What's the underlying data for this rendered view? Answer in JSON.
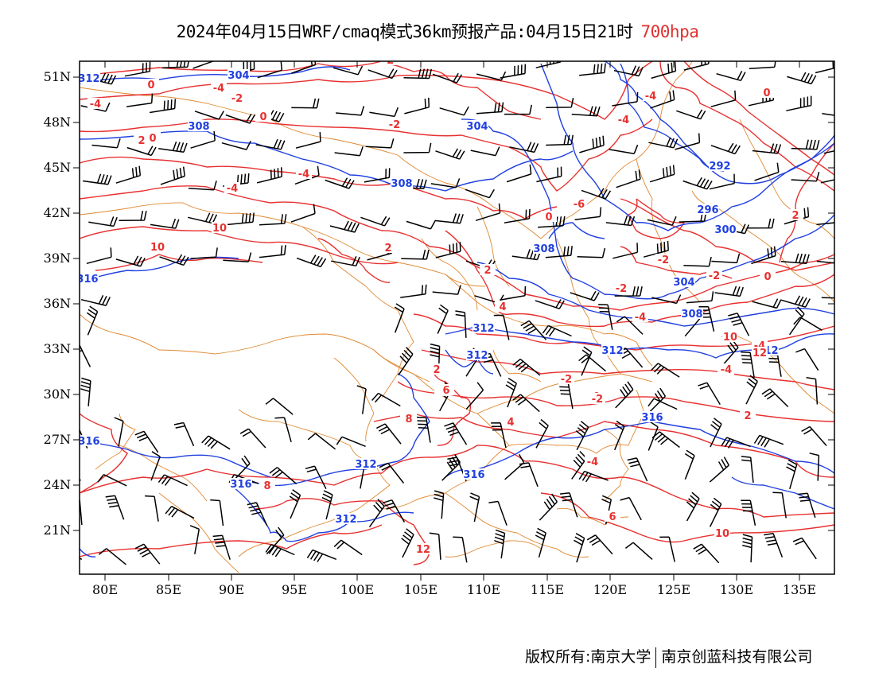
{
  "title": {
    "text": "2024年04月15日WRF/cmaq模式36km预报产品:04月15日21时",
    "level": "700hpa"
  },
  "axes": {
    "lat_labels": [
      "51N",
      "48N",
      "45N",
      "42N",
      "39N",
      "36N",
      "33N",
      "30N",
      "27N",
      "24N",
      "21N"
    ],
    "lon_labels": [
      "80E",
      "85E",
      "90E",
      "95E",
      "100E",
      "105E",
      "110E",
      "115E",
      "120E",
      "125E",
      "130E",
      "135E"
    ]
  },
  "colors": {
    "geopotential": "#2040e0",
    "temperature": "#e83030",
    "boundaries": "#e08830",
    "wind": "#000000",
    "level_label": "#e03030"
  },
  "contour_labels": {
    "geopotential": [
      "304",
      "308",
      "308",
      "304",
      "292",
      "296",
      "300",
      "308",
      "304",
      "308",
      "312",
      "312",
      "312",
      "316",
      "312",
      "316",
      "316",
      "312",
      "316",
      "312",
      "316",
      "312"
    ],
    "temperature": [
      "-2",
      "0",
      "-4",
      "-4",
      "-2",
      "0",
      "-2",
      "2",
      "-4",
      "-4",
      "0",
      "-6",
      "-4",
      "-2",
      "-4",
      "0",
      "2",
      "-2",
      "0",
      "-2",
      "-4",
      "-6",
      "-2",
      "-4",
      "0",
      "2",
      "4",
      "2",
      "-2",
      "0",
      "4",
      "2",
      "4",
      "6",
      "10",
      "12",
      "8",
      "6",
      "8",
      "6",
      "8",
      "10",
      "10",
      "10",
      "12",
      "-4",
      "-4",
      "-2",
      "2"
    ]
  },
  "wind_barbs": "station-plot",
  "footer": {
    "left": "版权所有:南京大学",
    "right": "南京创蓝科技有限公司"
  }
}
